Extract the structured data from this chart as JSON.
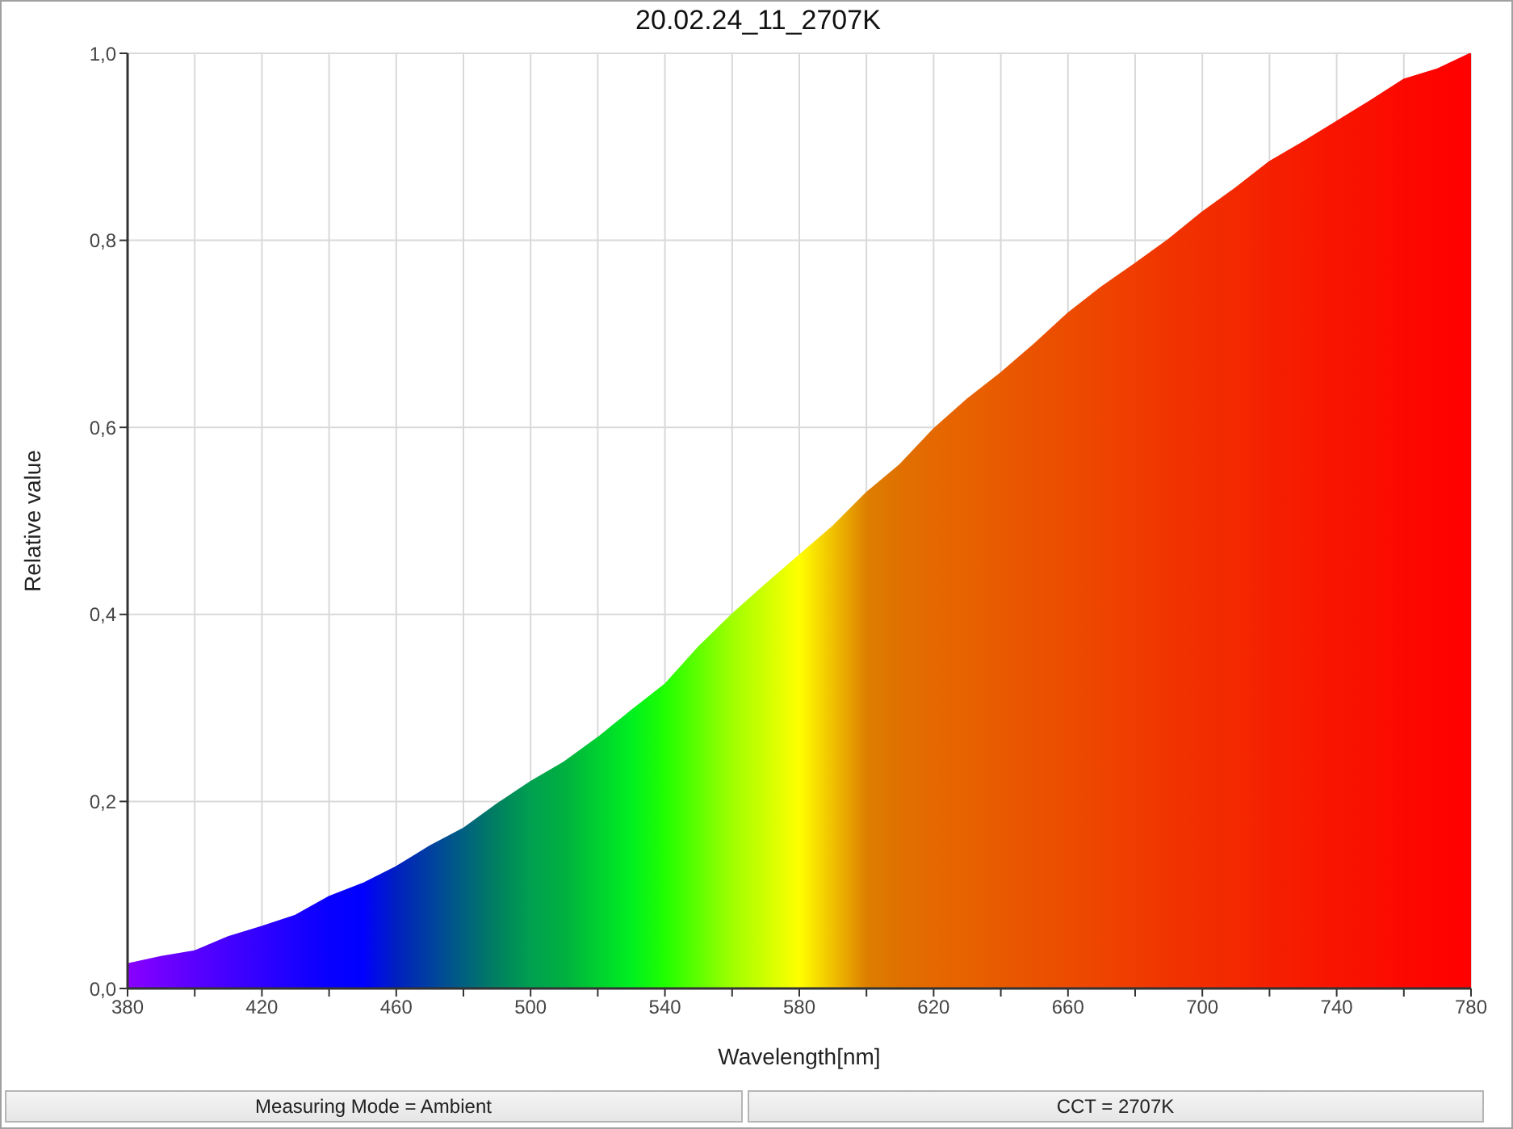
{
  "chart_data": {
    "type": "area",
    "title": "20.02.24_11_2707K",
    "xlabel": "Wavelength[nm]",
    "ylabel": "Relative value",
    "annotations": [
      "Measuring Mode = Ambient",
      "CCT = 2707K"
    ],
    "x": [
      380,
      390,
      400,
      410,
      420,
      430,
      440,
      450,
      460,
      470,
      480,
      490,
      500,
      510,
      520,
      530,
      540,
      550,
      560,
      570,
      580,
      590,
      600,
      610,
      620,
      630,
      640,
      650,
      660,
      670,
      680,
      690,
      700,
      710,
      720,
      730,
      740,
      750,
      760,
      770,
      780
    ],
    "values": [
      0.026,
      0.034,
      0.04,
      0.055,
      0.066,
      0.078,
      0.098,
      0.112,
      0.13,
      0.152,
      0.171,
      0.197,
      0.221,
      0.242,
      0.268,
      0.297,
      0.325,
      0.365,
      0.4,
      0.432,
      0.463,
      0.494,
      0.53,
      0.56,
      0.598,
      0.63,
      0.658,
      0.689,
      0.722,
      0.75,
      0.775,
      0.801,
      0.83,
      0.856,
      0.884,
      0.905,
      0.927,
      0.949,
      0.972,
      0.983,
      1.0
    ],
    "colors": [
      "#8a00ff",
      "#7000ff",
      "#5a00ff",
      "#4400ff",
      "#3000ff",
      "#1a00ff",
      "#0800ff",
      "#0000ff",
      "#0020c0",
      "#0040a0",
      "#006080",
      "#008060",
      "#00a050",
      "#00b040",
      "#00d030",
      "#00f020",
      "#20ff00",
      "#60ff00",
      "#a0ff00",
      "#d0ff00",
      "#ffff00",
      "#f0c000",
      "#dd7f00",
      "#e07000",
      "#e56800",
      "#e86200",
      "#e85a00",
      "#ea5200",
      "#ec4c00",
      "#ee4400",
      "#f03c00",
      "#f03400",
      "#f22e00",
      "#f42800",
      "#f52000",
      "#f71a00",
      "#f81400",
      "#fa1000",
      "#fc0800",
      "#fe0400",
      "#ff0000"
    ],
    "xlim": [
      380,
      780
    ],
    "xticks": [
      380,
      {
        "value": 400,
        "label": null
      },
      420,
      {
        "value": 440,
        "label": null
      },
      460,
      {
        "value": 480,
        "label": null
      },
      500,
      {
        "value": 520,
        "label": null
      },
      540,
      {
        "value": 560,
        "label": null
      },
      580,
      {
        "value": 600,
        "label": null
      },
      620,
      {
        "value": 640,
        "label": null
      },
      660,
      {
        "value": 680,
        "label": null
      },
      700,
      {
        "value": 720,
        "label": null
      },
      740,
      {
        "value": 760,
        "label": null
      },
      780
    ],
    "ylim": [
      0,
      1
    ],
    "yticks": [
      {
        "value": 0,
        "label": "0,0"
      },
      {
        "value": 0.2,
        "label": "0,2"
      },
      {
        "value": 0.4,
        "label": "0,4"
      },
      {
        "value": 0.6,
        "label": "0,6"
      },
      {
        "value": 0.8,
        "label": "0,8"
      },
      {
        "value": 1,
        "label": "1,0"
      }
    ],
    "grid": true
  }
}
